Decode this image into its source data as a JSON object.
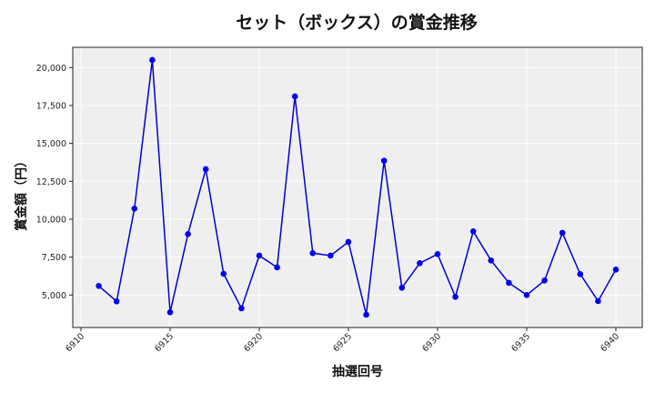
{
  "chart_data": {
    "type": "line",
    "title": "セット（ボックス）の賞金推移",
    "xlabel": "抽選回号",
    "ylabel": "賞金額（円）",
    "x": [
      6911,
      6912,
      6913,
      6914,
      6915,
      6916,
      6917,
      6918,
      6919,
      6920,
      6921,
      6922,
      6923,
      6924,
      6925,
      6926,
      6927,
      6928,
      6929,
      6930,
      6931,
      6932,
      6933,
      6934,
      6935,
      6936,
      6937,
      6938,
      6939,
      6940
    ],
    "series": [
      {
        "name": "賞金額",
        "color": "#0000cc",
        "values": [
          5600,
          4580,
          10700,
          20500,
          3860,
          9020,
          13300,
          6400,
          4120,
          7600,
          6820,
          18100,
          7760,
          7600,
          8500,
          3700,
          13860,
          5480,
          7100,
          7700,
          4880,
          9200,
          7280,
          5800,
          5000,
          5960,
          9100,
          6380,
          4600,
          6680
        ]
      }
    ],
    "xticks": [
      6910,
      6915,
      6920,
      6925,
      6930,
      6935,
      6940
    ],
    "yticks": [
      5000,
      7500,
      10000,
      12500,
      15000,
      17500,
      20000
    ],
    "ytick_labels": [
      "5,000",
      "7,500",
      "10,000",
      "12,500",
      "15,000",
      "17,500",
      "20,000"
    ],
    "xlim": [
      6909.5,
      6941.5
    ],
    "ylim": [
      2880,
      21380
    ],
    "grid": true,
    "legend": "none"
  },
  "colors": {
    "plot_background": "#efefef",
    "grid": "#ffffff",
    "line": "#0000cc",
    "marker": "#0000ee",
    "frame": "#222222"
  }
}
